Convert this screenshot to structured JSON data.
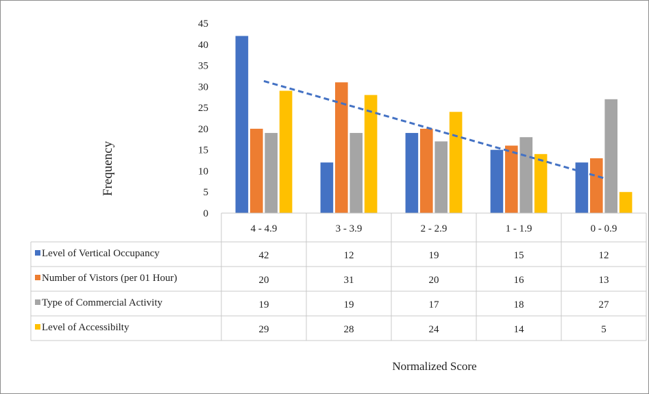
{
  "chart_data": {
    "type": "bar",
    "categories": [
      "4 - 4.9",
      "3 - 3.9",
      "2 - 2.9",
      "1 - 1.9",
      "0 - 0.9"
    ],
    "series": [
      {
        "name": "Level of Vertical Occupancy",
        "color": "#4472C4",
        "values": [
          42,
          12,
          19,
          15,
          12
        ]
      },
      {
        "name": "Number of Vistors (per 01 Hour)",
        "color": "#ED7D31",
        "values": [
          20,
          31,
          20,
          16,
          13
        ]
      },
      {
        "name": "Type of Commercial Activity",
        "color": "#A5A5A5",
        "values": [
          19,
          19,
          17,
          18,
          27
        ]
      },
      {
        "name": "Level of Accessibilty",
        "color": "#FFC000",
        "values": [
          29,
          28,
          24,
          14,
          5
        ]
      }
    ],
    "trendline": {
      "type": "linear",
      "style": "dashed",
      "color": "#4472C4",
      "from": 31.3,
      "to": 8.3
    },
    "ylim": [
      0,
      45
    ],
    "yticks": [
      0,
      5,
      10,
      15,
      20,
      25,
      30,
      35,
      40,
      45
    ],
    "ylabel": "Frequency",
    "xlabel": "Normalized Score",
    "data_table": true,
    "grid": false
  }
}
